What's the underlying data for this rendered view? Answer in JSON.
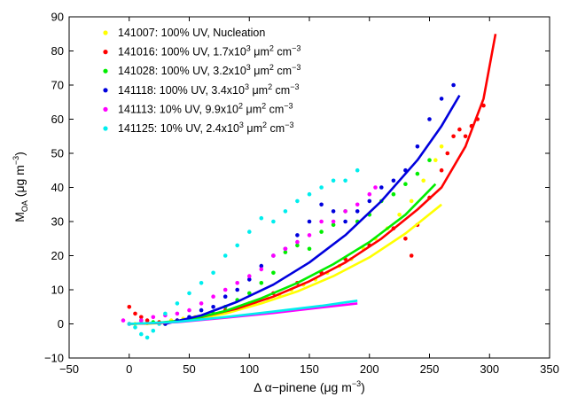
{
  "chart_data": {
    "type": "scatter",
    "xlabel": "Δ α−pinene (μg m",
    "xlabel_sup": "−3",
    "xlabel_end": ")",
    "ylabel_main": "M",
    "ylabel_sub": "OA",
    "ylabel_rest": " (μg m",
    "ylabel_sup": "−3",
    "ylabel_end": ")",
    "xlim": [
      -50,
      350
    ],
    "ylim": [
      -10,
      90
    ],
    "xticks": [
      "−50",
      "0",
      "50",
      "100",
      "150",
      "200",
      "250",
      "300",
      "350"
    ],
    "yticks": [
      "−10",
      "0",
      "10",
      "20",
      "30",
      "40",
      "50",
      "60",
      "70",
      "80",
      "90"
    ],
    "grid": false,
    "legend_position": "top-left",
    "series": [
      {
        "name": "141007: 100% UV, Nucleation",
        "legend": {
          "pre": "141007: 100% UV, Nucleation"
        },
        "color": "#ffff00",
        "points": [
          [
            5,
            0
          ],
          [
            15,
            0.2
          ],
          [
            25,
            0.5
          ],
          [
            35,
            1
          ],
          [
            45,
            1.5
          ],
          [
            55,
            2
          ],
          [
            65,
            2.5
          ],
          [
            75,
            3
          ],
          [
            85,
            4
          ],
          [
            95,
            5
          ],
          [
            105,
            6
          ],
          [
            115,
            7.5
          ],
          [
            125,
            8.5
          ],
          [
            135,
            10
          ],
          [
            145,
            11.5
          ],
          [
            155,
            13
          ],
          [
            165,
            15
          ],
          [
            175,
            17
          ],
          [
            185,
            19
          ],
          [
            195,
            22
          ],
          [
            205,
            25
          ],
          [
            215,
            28
          ],
          [
            225,
            32
          ],
          [
            235,
            36
          ],
          [
            245,
            42
          ],
          [
            255,
            48
          ],
          [
            260,
            52
          ]
        ],
        "fit": [
          [
            0,
            0
          ],
          [
            20,
            0.1
          ],
          [
            50,
            1
          ],
          [
            80,
            3
          ],
          [
            110,
            6
          ],
          [
            140,
            9.5
          ],
          [
            170,
            14
          ],
          [
            200,
            19.5
          ],
          [
            230,
            26.5
          ],
          [
            260,
            35
          ]
        ]
      },
      {
        "name": "141016: 100% UV, 1.7x10³ μm² cm⁻³",
        "legend": {
          "pre": "141016: 100% UV, 1.7x10",
          "sup1": "3",
          "mid": " μm",
          "sup2": "2",
          "post": " cm",
          "sup3": "−3"
        },
        "color": "#ff0000",
        "points": [
          [
            0,
            5
          ],
          [
            5,
            3
          ],
          [
            10,
            2
          ],
          [
            15,
            1
          ],
          [
            25,
            0.5
          ],
          [
            40,
            1
          ],
          [
            60,
            2
          ],
          [
            80,
            4
          ],
          [
            100,
            6
          ],
          [
            120,
            9
          ],
          [
            140,
            12
          ],
          [
            160,
            15
          ],
          [
            180,
            19
          ],
          [
            200,
            23
          ],
          [
            220,
            28
          ],
          [
            230,
            25
          ],
          [
            235,
            20
          ],
          [
            240,
            29
          ],
          [
            250,
            37
          ],
          [
            260,
            45
          ],
          [
            265,
            50
          ],
          [
            270,
            55
          ],
          [
            275,
            57
          ],
          [
            280,
            55
          ],
          [
            285,
            58
          ],
          [
            290,
            60
          ],
          [
            295,
            64
          ]
        ],
        "fit": [
          [
            0,
            0
          ],
          [
            30,
            0.3
          ],
          [
            60,
            2
          ],
          [
            90,
            4.5
          ],
          [
            120,
            8
          ],
          [
            150,
            12.5
          ],
          [
            180,
            18
          ],
          [
            210,
            25
          ],
          [
            240,
            33.5
          ],
          [
            260,
            40
          ],
          [
            280,
            52
          ],
          [
            295,
            66
          ],
          [
            305,
            85
          ]
        ]
      },
      {
        "name": "141028: 100% UV, 3.2x10³ μm² cm⁻³",
        "legend": {
          "pre": "141028: 100% UV, 3.2x10",
          "sup1": "3",
          "mid": " μm",
          "sup2": "2",
          "post": " cm",
          "sup3": "−3"
        },
        "color": "#00ee00",
        "points": [
          [
            10,
            1
          ],
          [
            20,
            0.5
          ],
          [
            30,
            0
          ],
          [
            45,
            1
          ],
          [
            60,
            2
          ],
          [
            70,
            3
          ],
          [
            80,
            5
          ],
          [
            90,
            7
          ],
          [
            100,
            9
          ],
          [
            110,
            12
          ],
          [
            120,
            15
          ],
          [
            130,
            21
          ],
          [
            140,
            23
          ],
          [
            150,
            22
          ],
          [
            160,
            27
          ],
          [
            170,
            29
          ],
          [
            180,
            33
          ],
          [
            190,
            30
          ],
          [
            200,
            32
          ],
          [
            210,
            36
          ],
          [
            220,
            38
          ],
          [
            230,
            41
          ],
          [
            240,
            44
          ],
          [
            250,
            48
          ]
        ],
        "fit": [
          [
            0,
            0
          ],
          [
            20,
            0.2
          ],
          [
            50,
            1.2
          ],
          [
            80,
            3.8
          ],
          [
            110,
            7.5
          ],
          [
            140,
            12
          ],
          [
            170,
            17.5
          ],
          [
            200,
            24
          ],
          [
            230,
            32
          ],
          [
            255,
            41
          ]
        ]
      },
      {
        "name": "141118: 100% UV, 3.4x10³ μm² cm⁻³",
        "legend": {
          "pre": "141118: 100% UV, 3.4x10",
          "sup1": "3",
          "mid": " μm",
          "sup2": "2",
          "post": " cm",
          "sup3": "−3"
        },
        "color": "#0000dd",
        "points": [
          [
            30,
            0
          ],
          [
            40,
            1
          ],
          [
            50,
            2
          ],
          [
            60,
            4
          ],
          [
            70,
            5
          ],
          [
            80,
            8
          ],
          [
            90,
            10
          ],
          [
            100,
            13
          ],
          [
            110,
            17
          ],
          [
            120,
            20
          ],
          [
            130,
            22
          ],
          [
            140,
            26
          ],
          [
            150,
            30
          ],
          [
            160,
            35
          ],
          [
            170,
            33
          ],
          [
            180,
            30
          ],
          [
            190,
            33
          ],
          [
            200,
            36
          ],
          [
            210,
            40
          ],
          [
            220,
            42
          ],
          [
            230,
            45
          ],
          [
            240,
            52
          ],
          [
            250,
            60
          ],
          [
            260,
            66
          ],
          [
            270,
            70
          ]
        ],
        "fit": [
          [
            30,
            0
          ],
          [
            60,
            2.5
          ],
          [
            90,
            6.5
          ],
          [
            120,
            11.5
          ],
          [
            150,
            18
          ],
          [
            180,
            26
          ],
          [
            210,
            36
          ],
          [
            240,
            48
          ],
          [
            260,
            58
          ],
          [
            275,
            67
          ]
        ]
      },
      {
        "name": "141113: 10% UV, 9.9x10² μm² cm⁻³",
        "legend": {
          "pre": "141113: 10% UV, 9.9x10",
          "sup1": "2",
          "mid": " μm",
          "sup2": "2",
          "post": " cm",
          "sup3": "−3"
        },
        "color": "#ff00ff",
        "points": [
          [
            -5,
            1
          ],
          [
            0,
            0
          ],
          [
            10,
            1
          ],
          [
            20,
            2
          ],
          [
            30,
            2.5
          ],
          [
            40,
            3
          ],
          [
            50,
            4
          ],
          [
            60,
            6
          ],
          [
            70,
            8
          ],
          [
            80,
            10
          ],
          [
            90,
            12
          ],
          [
            100,
            14
          ],
          [
            110,
            16
          ],
          [
            120,
            20
          ],
          [
            130,
            22
          ],
          [
            140,
            24
          ],
          [
            150,
            26
          ],
          [
            160,
            30
          ],
          [
            170,
            30
          ],
          [
            180,
            33
          ],
          [
            190,
            35
          ],
          [
            200,
            38
          ],
          [
            205,
            40
          ]
        ],
        "fit": [
          [
            0,
            0
          ],
          [
            40,
            0.5
          ],
          [
            80,
            1.8
          ],
          [
            120,
            3.2
          ],
          [
            160,
            4.8
          ],
          [
            190,
            6
          ]
        ]
      },
      {
        "name": "141125: 10% UV, 2.4x10³ μm² cm⁻³",
        "legend": {
          "pre": "141125: 10% UV, 2.4x10",
          "sup1": "3",
          "mid": " μm",
          "sup2": "2",
          "post": " cm",
          "sup3": "−3"
        },
        "color": "#00eeee",
        "points": [
          [
            0,
            0
          ],
          [
            5,
            -1
          ],
          [
            10,
            -3
          ],
          [
            15,
            -4
          ],
          [
            20,
            -2
          ],
          [
            25,
            0
          ],
          [
            30,
            3
          ],
          [
            40,
            6
          ],
          [
            50,
            9
          ],
          [
            60,
            12
          ],
          [
            70,
            15
          ],
          [
            80,
            20
          ],
          [
            90,
            23
          ],
          [
            100,
            27
          ],
          [
            110,
            31
          ],
          [
            120,
            30
          ],
          [
            130,
            33
          ],
          [
            140,
            36
          ],
          [
            150,
            38
          ],
          [
            160,
            40
          ],
          [
            170,
            42
          ],
          [
            180,
            42
          ],
          [
            190,
            45
          ]
        ],
        "fit": [
          [
            0,
            0
          ],
          [
            40,
            0.6
          ],
          [
            80,
            2
          ],
          [
            120,
            3.6
          ],
          [
            160,
            5.3
          ],
          [
            190,
            6.8
          ]
        ]
      }
    ]
  }
}
